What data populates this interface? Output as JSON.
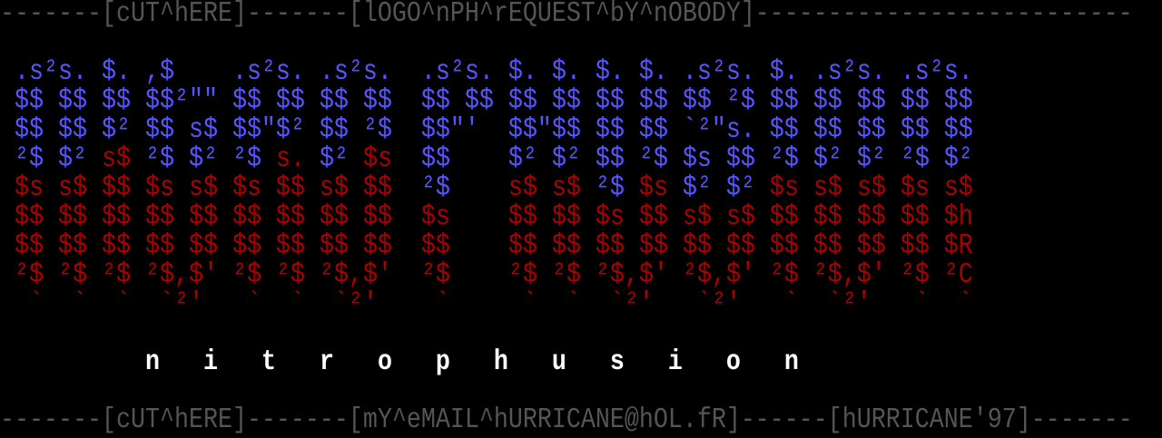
{
  "palette": {
    "g": "#555555",
    "b": "#5555ff",
    "r": "#aa0000",
    "w": "#ffffff"
  },
  "header_line": "-------[cUT^hERE]-------[lOGO^nPH^rEQUEST^bY^nOBODY]--------------------------",
  "art_rows": [
    [
      {
        "c": "b",
        "t": " .s²s. $. ,$    .s²s. .s²s.  .s²s. $. $. $. $. .s²s. $. .s²s. .s²s."
      }
    ],
    [
      {
        "c": "b",
        "t": " $$ $$ $$ $$²\"\" $$ $$ $$ $$  $$ $$ $$ $$ $$ $$ $$ ²$ $$ $$ $$ $$ $$"
      }
    ],
    [
      {
        "c": "b",
        "t": " $$ $$ $² $$ s$ $$\"$² $$ ²$  $$\"'  $$\"$$ $$ $$ `²\"s. $$ $$ $$ $$ $$"
      }
    ],
    [
      {
        "c": "b",
        "t": " ²$ $²"
      },
      {
        "c": "r",
        "t": " s$"
      },
      {
        "c": "b",
        "t": " ²$ $² ²$"
      },
      {
        "c": "r",
        "t": " s."
      },
      {
        "c": "b",
        "t": " $²"
      },
      {
        "c": "r",
        "t": " $s"
      },
      {
        "c": "b",
        "t": "  $$    $² $² $$ ²$ $s $$ ²$ $² $² ²$ $²"
      }
    ],
    [
      {
        "c": "r",
        "t": " $s s$ $$ $s s$ $s $$ s$ $$"
      },
      {
        "c": "b",
        "t": "  ²$"
      },
      {
        "c": "r",
        "t": "    s$ s$"
      },
      {
        "c": "b",
        "t": " ²$"
      },
      {
        "c": "r",
        "t": " $s"
      },
      {
        "c": "b",
        "t": " $² $²"
      },
      {
        "c": "r",
        "t": " $s s$ s$ $s s$"
      }
    ],
    [
      {
        "c": "r",
        "t": " $$ $$ $$ $$ $$ $$ $$ $$ $$  $s    $$ $$ $s $$ s$ s$ $$ $$ $$ $$ $h"
      }
    ],
    [
      {
        "c": "r",
        "t": " $$ $$ $$ $$ $$ $$ $$ $$ $$  $$    $$ $$ $$ $$ $$ $$ $$ $$ $$ $$ $R"
      }
    ],
    [
      {
        "c": "r",
        "t": " ²$ ²$ ²$ ²$,$' ²$ ²$ ²$,$'  ²$    ²$ ²$ ²$,$' ²$,$' ²$ ²$,$' ²$ ²C"
      }
    ],
    [
      {
        "c": "r",
        "t": "  `  `  `  `²'   `  `  `²'    `     `  `  `²'   `²'   `  `²'   `  `"
      }
    ]
  ],
  "title": "n   i   t   r   o   p   h   u   s   i   o   n",
  "footer_line": "-------[cUT^hERE]-------[mY^eMAIL^hURRICANE@hOL.fR]------[hURRICANE'97]-------"
}
